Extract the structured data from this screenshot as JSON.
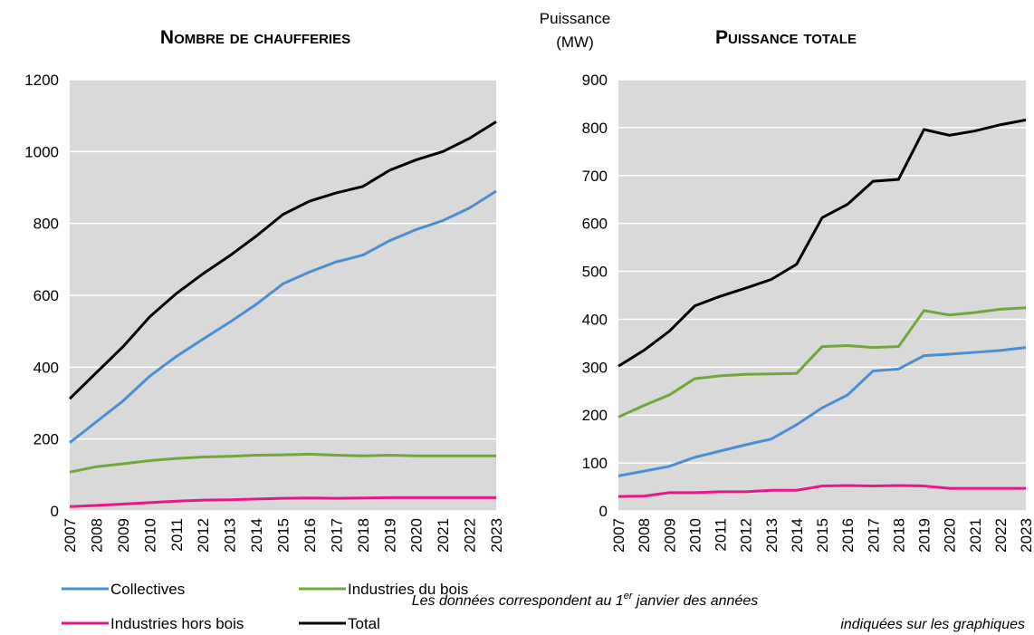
{
  "chart_data": [
    {
      "type": "line",
      "title": "Nombre de chaufferies",
      "categories": [
        "2007",
        "2008",
        "2009",
        "2010",
        "2011",
        "2012",
        "2013",
        "2014",
        "2015",
        "2016",
        "2017",
        "2018",
        "2019",
        "2020",
        "2021",
        "2022",
        "2023"
      ],
      "series": [
        {
          "name": "Collectives",
          "color": "#4a8fd4",
          "values": [
            190,
            248,
            306,
            375,
            430,
            478,
            525,
            575,
            632,
            665,
            693,
            712,
            752,
            783,
            808,
            843,
            890
          ]
        },
        {
          "name": "Industries du bois",
          "color": "#70a83c",
          "values": [
            108,
            123,
            131,
            140,
            146,
            150,
            152,
            155,
            156,
            158,
            155,
            153,
            155,
            153,
            153,
            153,
            153
          ]
        },
        {
          "name": "Industries hors bois",
          "color": "#e6198c",
          "values": [
            12,
            15,
            19,
            23,
            27,
            30,
            31,
            33,
            35,
            36,
            35,
            36,
            37,
            37,
            37,
            37,
            37
          ]
        },
        {
          "name": "Total",
          "color": "#000000",
          "values": [
            312,
            385,
            457,
            540,
            605,
            660,
            710,
            765,
            825,
            862,
            885,
            903,
            948,
            977,
            1000,
            1037,
            1083
          ]
        }
      ],
      "ylim": [
        0,
        1200
      ],
      "yticks": [
        0,
        200,
        400,
        600,
        800,
        1000,
        1200
      ],
      "grid": true
    },
    {
      "type": "line",
      "title": "Puissance totale",
      "ylabel": [
        "Puissance",
        "(MW)"
      ],
      "categories": [
        "2007",
        "2008",
        "2009",
        "2010",
        "2011",
        "2012",
        "2013",
        "2014",
        "2015",
        "2016",
        "2017",
        "2018",
        "2019",
        "2020",
        "2021",
        "2022",
        "2023"
      ],
      "series": [
        {
          "name": "Collectives",
          "color": "#4a8fd4",
          "values": [
            73,
            83,
            93,
            112,
            125,
            138,
            150,
            180,
            215,
            242,
            292,
            296,
            324,
            327,
            331,
            335,
            341
          ]
        },
        {
          "name": "Industries du bois",
          "color": "#70a83c",
          "values": [
            196,
            220,
            242,
            276,
            282,
            285,
            286,
            287,
            343,
            345,
            341,
            343,
            418,
            409,
            414,
            421,
            424
          ]
        },
        {
          "name": "Industries hors bois",
          "color": "#e6198c",
          "values": [
            30,
            31,
            38,
            38,
            40,
            40,
            43,
            43,
            52,
            53,
            52,
            53,
            52,
            47,
            47,
            47,
            47
          ]
        },
        {
          "name": "Total",
          "color": "#000000",
          "values": [
            302,
            335,
            375,
            428,
            448,
            465,
            483,
            515,
            612,
            640,
            688,
            692,
            796,
            784,
            793,
            806,
            816
          ]
        }
      ],
      "ylim": [
        0,
        900
      ],
      "yticks": [
        0,
        100,
        200,
        300,
        400,
        500,
        600,
        700,
        800,
        900
      ],
      "grid": true
    }
  ],
  "note": {
    "line1_start": "Les données correspondent au 1",
    "superscript": "er",
    "line1_end": " janvier des années",
    "line2": "indiquées sur les graphiques"
  }
}
